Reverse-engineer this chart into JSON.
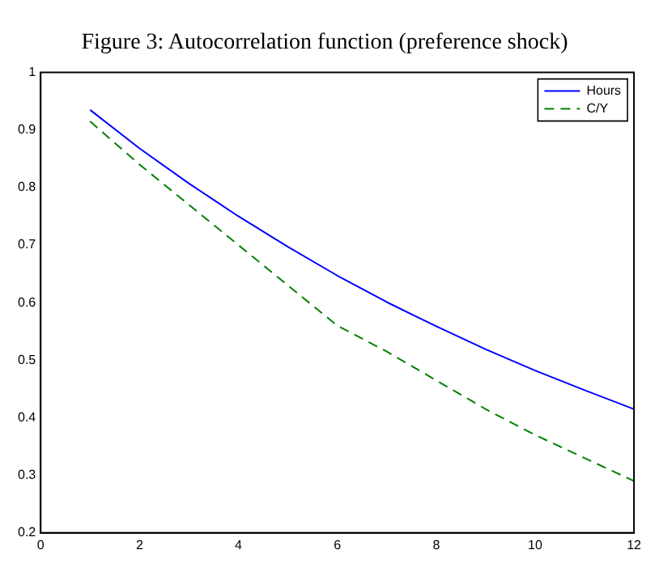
{
  "chart_data": {
    "type": "line",
    "title": "Figure 3: Autocorrelation function (preference shock)",
    "x": [
      1,
      2,
      3,
      4,
      5,
      6,
      7,
      8,
      9,
      10,
      11,
      12
    ],
    "series": [
      {
        "name": "Hours",
        "color": "#0000ff",
        "line_style": "solid",
        "values": [
          0.935,
          0.868,
          0.807,
          0.75,
          0.697,
          0.647,
          0.601,
          0.559,
          0.519,
          0.482,
          0.448,
          0.415
        ]
      },
      {
        "name": "C/Y",
        "color": "#008000",
        "line_style": "dashed",
        "values": [
          0.915,
          0.84,
          0.77,
          0.7,
          0.63,
          0.56,
          0.515,
          0.465,
          0.415,
          0.37,
          0.33,
          0.29
        ]
      }
    ],
    "xlim": [
      0,
      12
    ],
    "xticks": [
      0,
      2,
      4,
      6,
      8,
      10,
      12
    ],
    "ylim": [
      0.2,
      1
    ],
    "yticks": [
      0.2,
      0.3,
      0.4,
      0.5,
      0.6,
      0.7,
      0.8,
      0.9,
      1
    ],
    "grid": false,
    "legend": "top right",
    "marker": "none"
  }
}
